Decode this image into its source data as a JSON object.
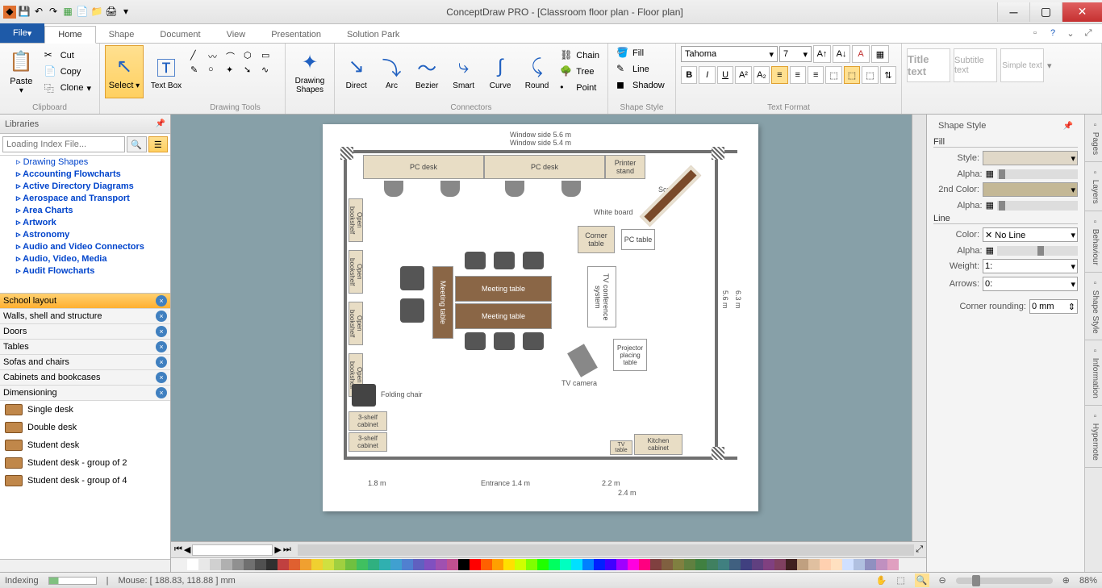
{
  "app": {
    "title": "ConceptDraw PRO - [Classroom floor plan - Floor plan]"
  },
  "ribbon": {
    "file": "File",
    "tabs": [
      "Home",
      "Shape",
      "Document",
      "View",
      "Presentation",
      "Solution Park"
    ],
    "active_tab": 0,
    "clipboard": {
      "paste": "Paste",
      "cut": "Cut",
      "copy": "Copy",
      "clone": "Clone",
      "label": "Clipboard"
    },
    "select": "Select",
    "textbox": "Text\nBox",
    "drawing_tools": "Drawing Tools",
    "drawing_shapes": "Drawing\nShapes",
    "connectors": {
      "direct": "Direct",
      "arc": "Arc",
      "bezier": "Bezier",
      "smart": "Smart",
      "curve": "Curve",
      "round": "Round",
      "chain": "Chain",
      "tree": "Tree",
      "point": "Point",
      "label": "Connectors"
    },
    "shape_style": {
      "fill": "Fill",
      "line": "Line",
      "shadow": "Shadow",
      "label": "Shape Style"
    },
    "text_format": {
      "font": "Tahoma",
      "size": "7",
      "label": "Text Format"
    },
    "presets": {
      "title": "Title\ntext",
      "subtitle": "Subtitle\ntext",
      "simple": "Simple\ntext"
    }
  },
  "libraries": {
    "title": "Libraries",
    "search_placeholder": "Loading Index File...",
    "tree": [
      {
        "label": "Drawing Shapes",
        "bold": false
      },
      {
        "label": "Accounting Flowcharts",
        "bold": true
      },
      {
        "label": "Active Directory Diagrams",
        "bold": true
      },
      {
        "label": "Aerospace and Transport",
        "bold": true
      },
      {
        "label": "Area Charts",
        "bold": true
      },
      {
        "label": "Artwork",
        "bold": true
      },
      {
        "label": "Astronomy",
        "bold": true
      },
      {
        "label": "Audio and Video Connectors",
        "bold": true
      },
      {
        "label": "Audio, Video, Media",
        "bold": true
      },
      {
        "label": "Audit Flowcharts",
        "bold": true
      }
    ],
    "categories": [
      {
        "label": "School layout",
        "active": true
      },
      {
        "label": "Walls, shell and structure",
        "active": false
      },
      {
        "label": "Doors",
        "active": false
      },
      {
        "label": "Tables",
        "active": false
      },
      {
        "label": "Sofas and chairs",
        "active": false
      },
      {
        "label": "Cabinets and bookcases",
        "active": false
      },
      {
        "label": "Dimensioning",
        "active": false
      }
    ],
    "shapes": [
      "Single desk",
      "Double desk",
      "Student desk",
      "Student desk - group of 2",
      "Student desk - group of 4"
    ]
  },
  "floorplan": {
    "dim_top_outer": "Window side 5.6 m",
    "dim_top_inner": "Window side 5.4 m",
    "labels": {
      "pc_desk": "PC desk",
      "printer_stand": "Printer\nstand",
      "screen": "Screen",
      "whiteboard": "White board",
      "corner_table": "Corner\ntable",
      "pc_table": "PC table",
      "open_bookshelf": "Open bookshelf",
      "meeting_table": "Meeting table",
      "tv_conference": "TV conference system",
      "projector_table": "Projector\nplacing\ntable",
      "tv_camera": "TV camera",
      "folding_chair": "Folding chair",
      "cabinet3": "3-shelf\ncabinet",
      "tv_table": "TV\ntable",
      "kitchen_cabinet": "Kitchen\ncabinet",
      "entrance": "Entrance 1.4 m"
    },
    "dim_right_inner": "5.6 m",
    "dim_right_outer": "6.3 m",
    "dim_bottom": [
      "1.8 m",
      "Entrance 1.4 m",
      "2.2 m",
      "2.4 m"
    ]
  },
  "shape_style_panel": {
    "title": "Shape Style",
    "fill": "Fill",
    "style": "Style:",
    "alpha": "Alpha:",
    "color2": "2nd Color:",
    "line": "Line",
    "color": "Color:",
    "no_line": "No Line",
    "weight": "Weight:",
    "weight_val": "1:",
    "arrows": "Arrows:",
    "arrows_val": "0:",
    "corner": "Corner rounding:",
    "corner_val": "0 mm",
    "colors": {
      "fill_color": "#ddd2b8",
      "second_color": "#c4b896"
    }
  },
  "sidetabs": [
    "Pages",
    "Layers",
    "Behaviour",
    "Shape Style",
    "Information",
    "Hypernote"
  ],
  "status": {
    "indexing": "Indexing",
    "mouse": "Mouse: [ 188.83, 118.88 ] mm",
    "zoom": "88%"
  },
  "palette_colors": [
    "#ffffff",
    "#e8e8e8",
    "#d0d0d0",
    "#b0b0b0",
    "#909090",
    "#707070",
    "#505050",
    "#303030",
    "#c04040",
    "#e06030",
    "#f0a030",
    "#f0d030",
    "#d0e040",
    "#a0d040",
    "#70c040",
    "#40c060",
    "#30b080",
    "#30b0b0",
    "#40a0d0",
    "#5080d0",
    "#6060c0",
    "#8050c0",
    "#a050b0",
    "#c05090",
    "#000000",
    "#ff0000",
    "#ff6000",
    "#ffa000",
    "#ffe000",
    "#d0ff00",
    "#80ff00",
    "#20ff00",
    "#00ff60",
    "#00ffc0",
    "#00e0ff",
    "#0080ff",
    "#0020ff",
    "#4000ff",
    "#a000ff",
    "#ff00e0",
    "#ff0080",
    "#804040",
    "#806040",
    "#808040",
    "#608040",
    "#408040",
    "#408060",
    "#408080",
    "#406080",
    "#404080",
    "#604080",
    "#804080",
    "#804060",
    "#402020",
    "#c0a080",
    "#e0c0a0",
    "#ffd0b0",
    "#ffe0c0",
    "#d0e0ff",
    "#b0c0e0",
    "#9090c0",
    "#c090c0",
    "#e0a0c0"
  ]
}
